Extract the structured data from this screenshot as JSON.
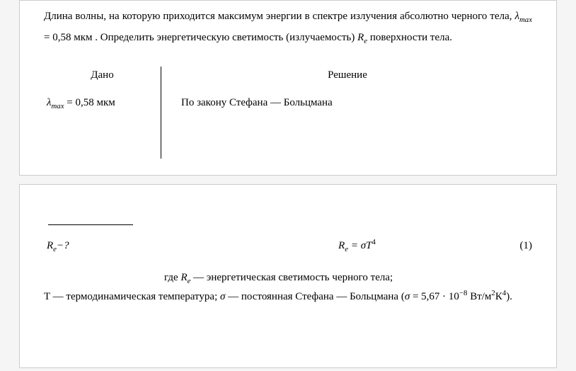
{
  "problem": {
    "line1_prefix": "Длина волны, на которую приходится максимум энергии в спектре излучения абсолютно черного тела, ",
    "lambda_var": "λ",
    "lambda_sub": "max",
    "eq": " = 0,58 мкм ",
    "line1_suffix": ". Определить энергетическую светимость (излучаемость) ",
    "r_var": "R",
    "r_sub": "e",
    "line_end": " поверхности тела."
  },
  "given": {
    "header": "Дано",
    "lambda_var": "λ",
    "lambda_sub": "max",
    "val": " = 0,58 мкм"
  },
  "solution": {
    "header": "Решение",
    "line1": "По закону Стефана — Больцмана"
  },
  "find": {
    "r_var": "R",
    "r_sub": "e",
    "suffix": "−?"
  },
  "formula": {
    "r_var": "R",
    "r_sub": "e",
    "eq": " = σT",
    "power": "4",
    "num": "(1)"
  },
  "desc": {
    "p1": "где ",
    "r_var": "R",
    "r_sub": "e",
    "p1b": " — энергетическая светимость черного тела;",
    "p2": "T — термодинамическая температура; ",
    "sigma": "σ",
    "p2b": " — постоянная Стефана — Больцмана (",
    "sigma2": "σ",
    "val": " = 5,67 · 10",
    "exp": "−8",
    "unit": " Вт/м",
    "u2": "2",
    "k": "К",
    "k4": "4",
    "end": ")."
  },
  "style": {
    "text_color": "#000000",
    "background": "#ffffff",
    "page_border": "#cccccc",
    "font_family": "Times New Roman",
    "body_fontsize_pt": 11,
    "line_height": 1.9
  }
}
